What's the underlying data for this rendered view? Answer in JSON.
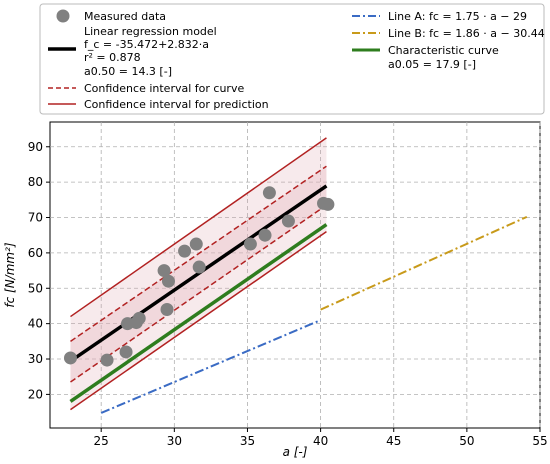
{
  "chart_data": {
    "type": "scatter",
    "xlabel": "a [-]",
    "ylabel": "fc [N/mm²]",
    "xlim": [
      21.5,
      55
    ],
    "ylim": [
      10.5,
      97
    ],
    "x_ticks": [
      25,
      30,
      35,
      40,
      45,
      50,
      55
    ],
    "y_ticks": [
      20,
      30,
      40,
      50,
      60,
      70,
      80,
      90
    ],
    "grid": true,
    "legend_placement": "top (outside plot, two columns)",
    "measured": {
      "name": "Measured data",
      "color": "#808080",
      "points": [
        {
          "x": 22.9,
          "y": 30.3
        },
        {
          "x": 25.4,
          "y": 29.7
        },
        {
          "x": 26.7,
          "y": 32.0
        },
        {
          "x": 26.8,
          "y": 40.0
        },
        {
          "x": 27.4,
          "y": 40.3
        },
        {
          "x": 27.6,
          "y": 41.5
        },
        {
          "x": 29.3,
          "y": 55.0
        },
        {
          "x": 29.5,
          "y": 44.0
        },
        {
          "x": 29.6,
          "y": 52.0
        },
        {
          "x": 30.7,
          "y": 60.5
        },
        {
          "x": 31.5,
          "y": 62.5
        },
        {
          "x": 31.7,
          "y": 56.0
        },
        {
          "x": 35.2,
          "y": 62.5
        },
        {
          "x": 36.2,
          "y": 65.0
        },
        {
          "x": 36.5,
          "y": 77.0
        },
        {
          "x": 37.8,
          "y": 69.0
        },
        {
          "x": 40.2,
          "y": 74.0
        },
        {
          "x": 40.5,
          "y": 73.7
        }
      ]
    },
    "regression": {
      "name": "Linear regression model",
      "equation": "f_c = -35.472+2.832·a",
      "r2": "r² = 0.878",
      "a050": "a0.50 = 14.3 [-]",
      "intercept": -35.472,
      "slope": 2.832,
      "x_range": [
        22.9,
        40.4
      ],
      "color": "#000000"
    },
    "confidence_curve": {
      "name": "Confidence interval for curve",
      "color": "#b22222",
      "upper": [
        [
          22.9,
          35.0
        ],
        [
          40.4,
          84.5
        ]
      ],
      "lower": [
        [
          22.9,
          23.5
        ],
        [
          40.4,
          73.5
        ]
      ]
    },
    "confidence_prediction": {
      "name": "Confidence interval for prediction",
      "color": "#b22222",
      "upper": [
        [
          22.9,
          42.0
        ],
        [
          40.4,
          92.5
        ]
      ],
      "lower": [
        [
          22.9,
          15.7
        ],
        [
          40.4,
          66.0
        ]
      ]
    },
    "line_a": {
      "name": "Line A: fc = 1.75 · a − 29",
      "slope": 1.75,
      "intercept": -29,
      "x_range": [
        25,
        40
      ],
      "color": "#3a6bc4"
    },
    "line_b": {
      "name": "Line B: fc = 1.86 · a − 30.44",
      "slope": 1.86,
      "intercept": -30.44,
      "x_range": [
        40,
        54.1
      ],
      "color": "#c89a1a"
    },
    "characteristic": {
      "name": "Characteristic curve",
      "sub": "a0.05 = 17.9 [-]",
      "color": "#2e7d1e",
      "points": [
        [
          22.9,
          18.0
        ],
        [
          40.4,
          68.0
        ]
      ]
    }
  }
}
